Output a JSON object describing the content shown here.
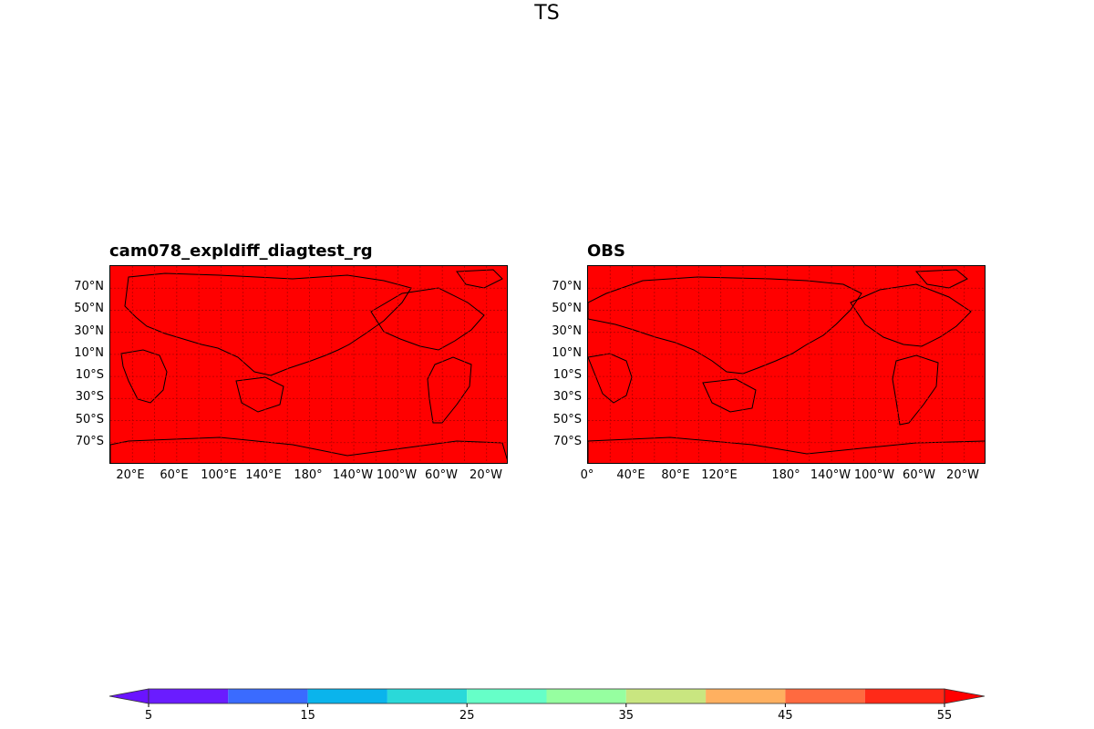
{
  "figure": {
    "title": "TS"
  },
  "chart_data": [
    {
      "type": "heatmap",
      "title": "cam078_expldiff_diagtest_rg",
      "fill_color": "#ff0000",
      "grid_color": "#b00000",
      "ytick_labels": [
        "70°N",
        "50°N",
        "30°N",
        "10°N",
        "10°S",
        "30°S",
        "50°S",
        "70°S"
      ],
      "xtick_labels": [
        "20°E",
        "60°E",
        "100°E",
        "140°E",
        "180°",
        "140°W",
        "100°W",
        "60°W",
        "20°W"
      ],
      "lat_range": [
        -90,
        90
      ],
      "lon_range": [
        0,
        360
      ],
      "grid": true,
      "value_range": "all values ≥ 55 (entire field in top color bin)"
    },
    {
      "type": "heatmap",
      "title": "OBS",
      "fill_color": "#ff0000",
      "grid_color": "#b00000",
      "ytick_labels": [
        "70°N",
        "50°N",
        "30°N",
        "10°N",
        "10°S",
        "30°S",
        "50°S",
        "70°S"
      ],
      "xtick_labels": [
        "0°",
        "40°E",
        "80°E",
        "120°E",
        "180°",
        "140°W",
        "100°W",
        "60°W",
        "20°W"
      ],
      "lat_range": [
        -90,
        90
      ],
      "lon_range": [
        0,
        360
      ],
      "grid": true,
      "value_range": "all values ≥ 55 (entire field in top color bin)"
    }
  ],
  "colorbar": {
    "levels": [
      5,
      10,
      15,
      20,
      25,
      30,
      35,
      40,
      45,
      50,
      55
    ],
    "colors": [
      "#6a14ff",
      "#6a1cff",
      "#3a6bff",
      "#0ab4ec",
      "#2ad9d9",
      "#66ffc8",
      "#96ffa0",
      "#c9e680",
      "#ffb060",
      "#ff6a40",
      "#ff2a18",
      "#ff0000"
    ],
    "tick_labels": [
      "5",
      "15",
      "25",
      "35",
      "45",
      "55"
    ],
    "extend": "both"
  }
}
